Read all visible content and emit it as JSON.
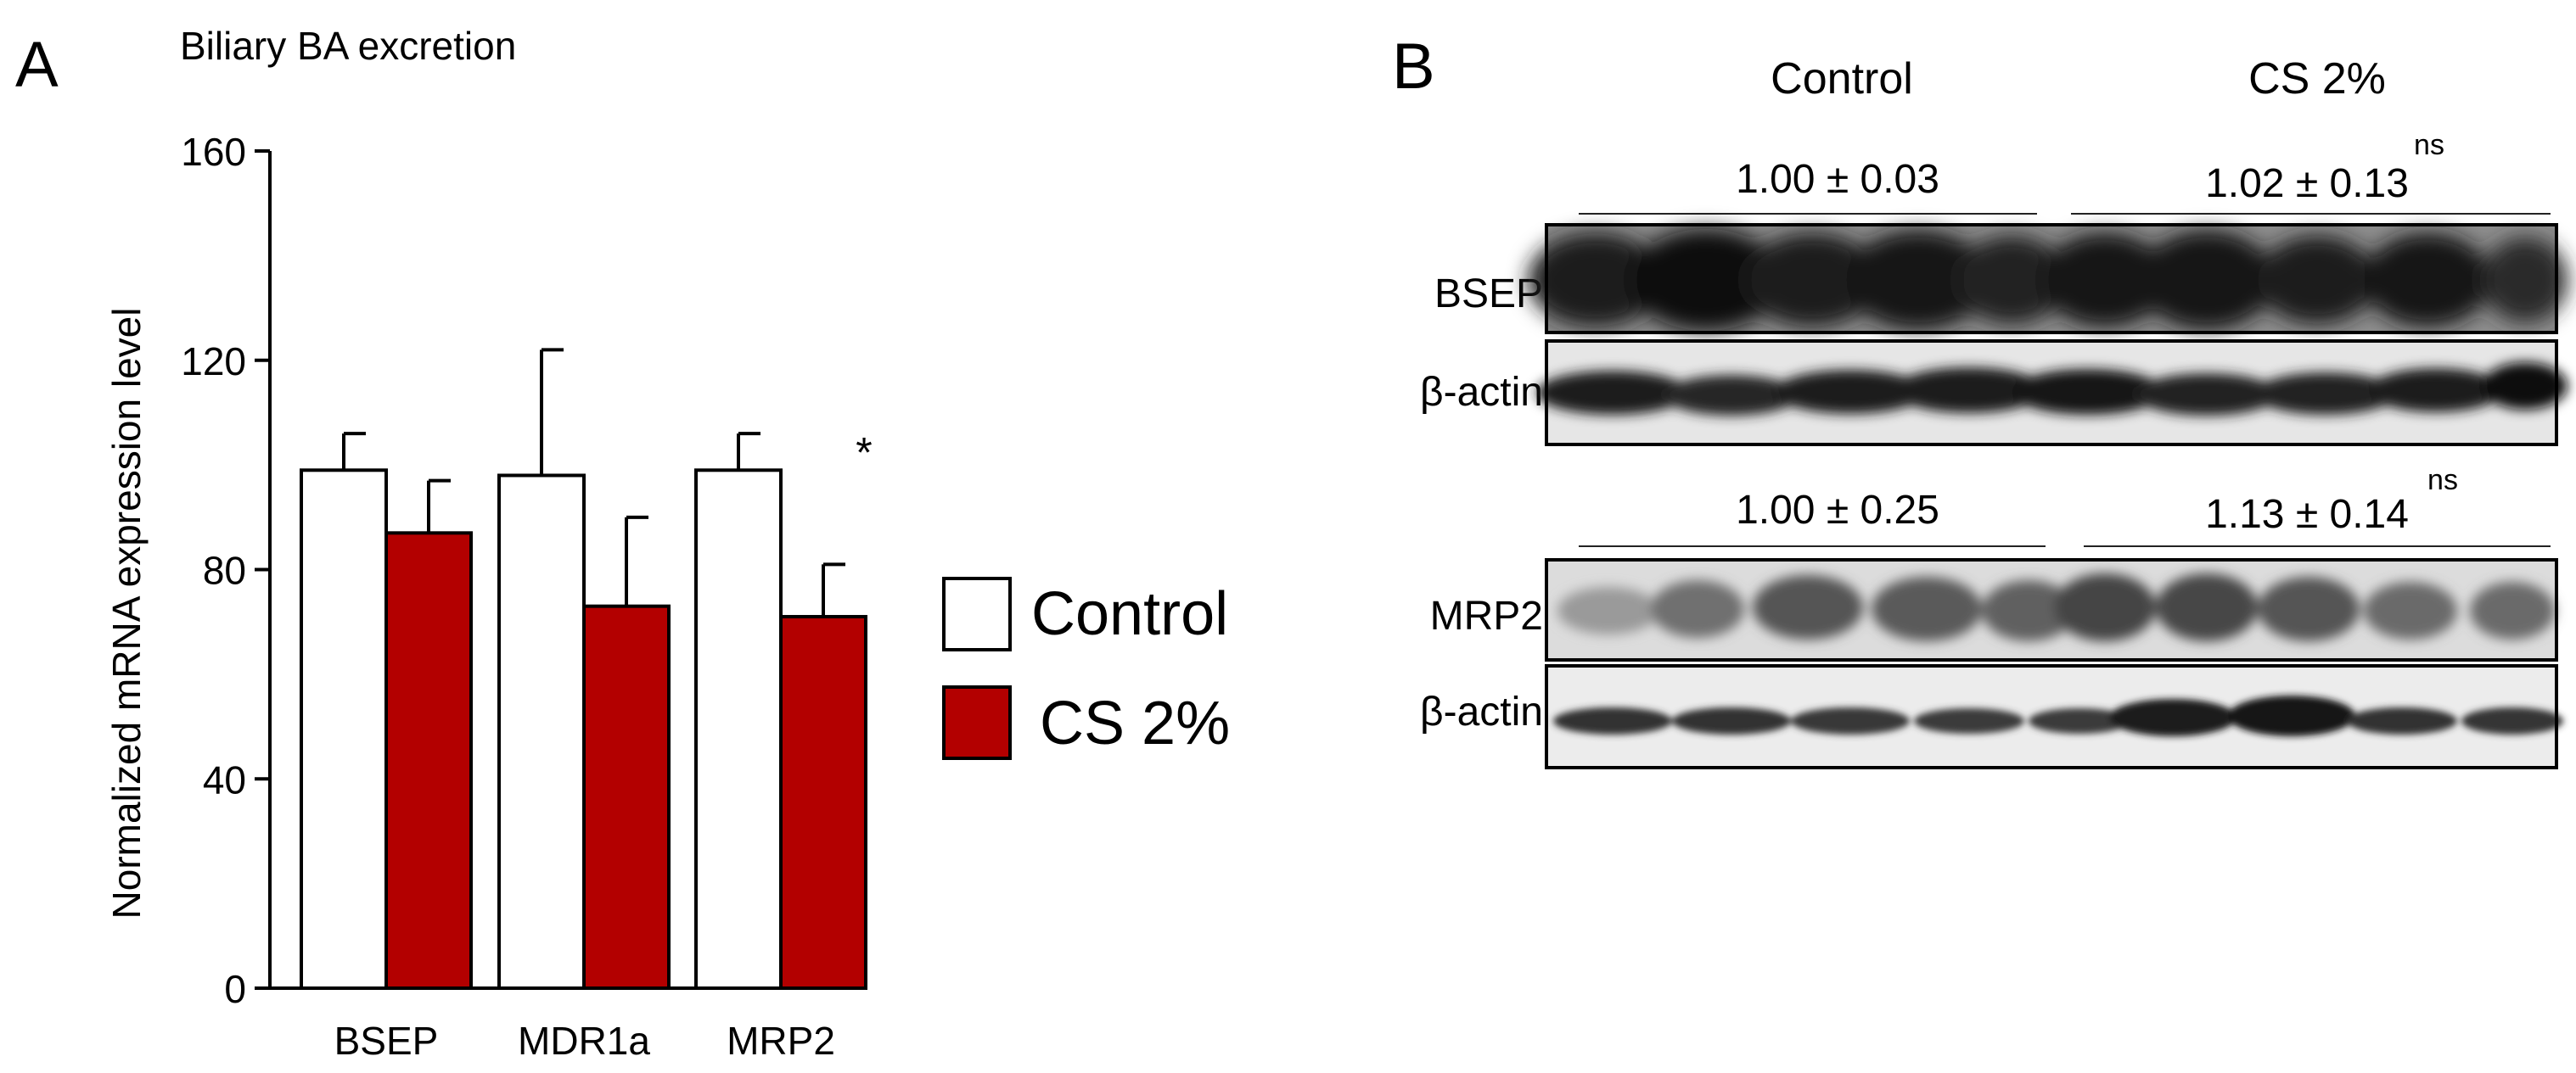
{
  "panel_a": {
    "letter": "A",
    "subtitle": "Biliary BA excretion",
    "significance_marker": "*"
  },
  "panel_b": {
    "letter": "B",
    "group_labels": [
      "Control",
      "CS 2%"
    ],
    "blot_rows": [
      {
        "label": "BSEP",
        "quant_left": "1.00 ± 0.03",
        "quant_right": "1.02 ± 0.13",
        "quant_right_annotation": "ns",
        "loading_label": "β-actin"
      },
      {
        "label": "MRP2",
        "quant_left": "1.00 ± 0.25",
        "quant_right": "1.13 ± 0.14",
        "quant_right_annotation": "ns",
        "loading_label": "β-actin"
      }
    ]
  },
  "colors": {
    "control_fill": "#ffffff",
    "cs_fill": "#b30000",
    "axis": "#000000"
  },
  "chart_data": {
    "type": "bar",
    "title": "Biliary BA excretion",
    "ylabel": "Normalized mRNA expression level",
    "xlabel": "",
    "categories": [
      "BSEP",
      "MDR1a",
      "MRP2"
    ],
    "ylim": [
      0,
      160
    ],
    "yticks": [
      0,
      40,
      80,
      120,
      160
    ],
    "series": [
      {
        "name": "Control",
        "values": [
          99,
          98,
          99
        ],
        "errors": [
          7,
          24,
          7
        ],
        "color": "#ffffff"
      },
      {
        "name": "CS 2%",
        "values": [
          87,
          73,
          71
        ],
        "errors": [
          10,
          17,
          10
        ],
        "color": "#b30000"
      }
    ],
    "annotations": [
      {
        "category": "MRP2",
        "text": "*"
      }
    ],
    "legend": {
      "position": "right",
      "entries": [
        "Control",
        "CS 2%"
      ]
    },
    "grid": false
  }
}
